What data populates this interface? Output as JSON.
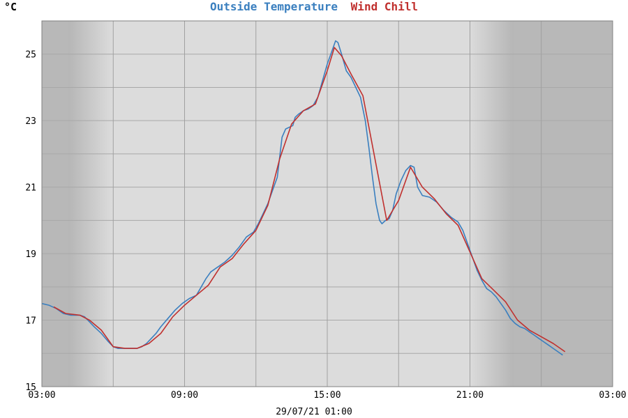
{
  "chart_data": {
    "type": "line",
    "title_parts": [
      {
        "text": "Outside Temperature",
        "color": "#3a7fbf"
      },
      {
        "text": "Wind Chill",
        "color": "#c0302e"
      }
    ],
    "ylabel": "°C",
    "xlabel": "29/07/21 01:00",
    "ylim": [
      15,
      26
    ],
    "xlim_hours": [
      3,
      27
    ],
    "yticks": [
      15,
      17,
      19,
      21,
      23,
      25
    ],
    "xticks": [
      {
        "h": 3,
        "label": "03:00"
      },
      {
        "h": 9,
        "label": "09:00"
      },
      {
        "h": 15,
        "label": "15:00"
      },
      {
        "h": 21,
        "label": "21:00"
      },
      {
        "h": 27,
        "label": "03:00"
      }
    ],
    "grid": true,
    "shading": {
      "night_color": "#b8b8b8",
      "day_color": "#dcdcdc",
      "dark_end_morning": 24,
      "dark_start_evening": 24
    },
    "series": [
      {
        "name": "Outside Temperature",
        "color": "#3a7fbf",
        "points": [
          [
            3.0,
            17.5
          ],
          [
            3.3,
            17.45
          ],
          [
            3.6,
            17.35
          ],
          [
            3.9,
            17.2
          ],
          [
            4.2,
            17.15
          ],
          [
            4.6,
            17.15
          ],
          [
            4.8,
            17.1
          ],
          [
            5.0,
            16.95
          ],
          [
            5.2,
            16.8
          ],
          [
            5.5,
            16.6
          ],
          [
            5.8,
            16.35
          ],
          [
            6.0,
            16.2
          ],
          [
            6.2,
            16.15
          ],
          [
            6.4,
            16.15
          ],
          [
            6.6,
            16.15
          ],
          [
            6.8,
            16.15
          ],
          [
            7.0,
            16.15
          ],
          [
            7.2,
            16.2
          ],
          [
            7.4,
            16.3
          ],
          [
            7.6,
            16.45
          ],
          [
            7.8,
            16.6
          ],
          [
            8.0,
            16.8
          ],
          [
            8.3,
            17.05
          ],
          [
            8.6,
            17.3
          ],
          [
            8.9,
            17.5
          ],
          [
            9.2,
            17.65
          ],
          [
            9.5,
            17.75
          ],
          [
            9.7,
            18.0
          ],
          [
            9.9,
            18.25
          ],
          [
            10.1,
            18.45
          ],
          [
            10.4,
            18.6
          ],
          [
            10.7,
            18.75
          ],
          [
            11.0,
            18.95
          ],
          [
            11.3,
            19.2
          ],
          [
            11.6,
            19.5
          ],
          [
            11.9,
            19.65
          ],
          [
            12.1,
            19.9
          ],
          [
            12.3,
            20.2
          ],
          [
            12.5,
            20.5
          ],
          [
            12.7,
            20.9
          ],
          [
            12.9,
            21.3
          ],
          [
            13.0,
            21.9
          ],
          [
            13.1,
            22.5
          ],
          [
            13.25,
            22.75
          ],
          [
            13.4,
            22.8
          ],
          [
            13.55,
            22.85
          ],
          [
            13.65,
            23.1
          ],
          [
            13.8,
            23.2
          ],
          [
            14.0,
            23.3
          ],
          [
            14.2,
            23.35
          ],
          [
            14.4,
            23.45
          ],
          [
            14.6,
            23.7
          ],
          [
            14.8,
            24.2
          ],
          [
            15.0,
            24.7
          ],
          [
            15.2,
            25.1
          ],
          [
            15.35,
            25.4
          ],
          [
            15.45,
            25.35
          ],
          [
            15.6,
            25.0
          ],
          [
            15.8,
            24.5
          ],
          [
            16.0,
            24.3
          ],
          [
            16.2,
            24.0
          ],
          [
            16.4,
            23.7
          ],
          [
            16.6,
            23.0
          ],
          [
            16.75,
            22.2
          ],
          [
            16.9,
            21.3
          ],
          [
            17.05,
            20.5
          ],
          [
            17.2,
            20.0
          ],
          [
            17.3,
            19.9
          ],
          [
            17.45,
            20.0
          ],
          [
            17.6,
            20.05
          ],
          [
            17.75,
            20.3
          ],
          [
            17.9,
            20.8
          ],
          [
            18.1,
            21.2
          ],
          [
            18.3,
            21.5
          ],
          [
            18.5,
            21.65
          ],
          [
            18.65,
            21.6
          ],
          [
            18.8,
            21.0
          ],
          [
            19.0,
            20.75
          ],
          [
            19.3,
            20.7
          ],
          [
            19.6,
            20.55
          ],
          [
            19.9,
            20.3
          ],
          [
            20.2,
            20.1
          ],
          [
            20.5,
            19.95
          ],
          [
            20.7,
            19.7
          ],
          [
            20.9,
            19.3
          ],
          [
            21.1,
            18.9
          ],
          [
            21.3,
            18.5
          ],
          [
            21.5,
            18.2
          ],
          [
            21.7,
            17.95
          ],
          [
            21.9,
            17.85
          ],
          [
            22.1,
            17.7
          ],
          [
            22.3,
            17.5
          ],
          [
            22.5,
            17.3
          ],
          [
            22.7,
            17.05
          ],
          [
            22.9,
            16.9
          ],
          [
            23.1,
            16.8
          ],
          [
            23.3,
            16.75
          ],
          [
            23.5,
            16.65
          ],
          [
            23.7,
            16.55
          ],
          [
            23.9,
            16.45
          ],
          [
            24.1,
            16.35
          ],
          [
            24.3,
            16.25
          ],
          [
            24.5,
            16.15
          ],
          [
            24.7,
            16.05
          ],
          [
            24.9,
            15.95
          ]
        ]
      },
      {
        "name": "Wind Chill",
        "color": "#c0302e",
        "points": [
          [
            3.5,
            17.4
          ],
          [
            4.0,
            17.2
          ],
          [
            4.6,
            17.15
          ],
          [
            5.0,
            17.0
          ],
          [
            5.5,
            16.7
          ],
          [
            6.0,
            16.2
          ],
          [
            6.5,
            16.15
          ],
          [
            7.0,
            16.15
          ],
          [
            7.5,
            16.3
          ],
          [
            8.0,
            16.6
          ],
          [
            8.5,
            17.1
          ],
          [
            9.0,
            17.45
          ],
          [
            9.5,
            17.75
          ],
          [
            10.0,
            18.05
          ],
          [
            10.5,
            18.6
          ],
          [
            11.0,
            18.85
          ],
          [
            11.5,
            19.3
          ],
          [
            12.0,
            19.7
          ],
          [
            12.5,
            20.45
          ],
          [
            13.0,
            21.85
          ],
          [
            13.5,
            22.9
          ],
          [
            14.0,
            23.3
          ],
          [
            14.5,
            23.5
          ],
          [
            15.0,
            24.5
          ],
          [
            15.3,
            25.2
          ],
          [
            15.6,
            24.95
          ],
          [
            16.0,
            24.4
          ],
          [
            16.5,
            23.75
          ],
          [
            17.5,
            20.0
          ],
          [
            18.0,
            20.6
          ],
          [
            18.5,
            21.6
          ],
          [
            19.0,
            21.0
          ],
          [
            19.5,
            20.65
          ],
          [
            20.0,
            20.2
          ],
          [
            20.5,
            19.85
          ],
          [
            21.0,
            19.05
          ],
          [
            21.5,
            18.25
          ],
          [
            22.0,
            17.9
          ],
          [
            22.5,
            17.55
          ],
          [
            23.0,
            17.0
          ],
          [
            23.5,
            16.7
          ],
          [
            24.0,
            16.5
          ],
          [
            24.5,
            16.3
          ],
          [
            25.0,
            16.05
          ]
        ]
      }
    ]
  }
}
